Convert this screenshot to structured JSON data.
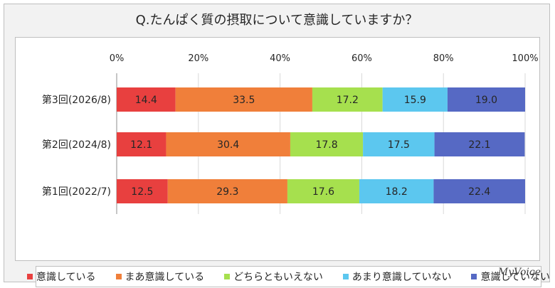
{
  "title": "Q.たんぱく質の摂取について意識していますか？",
  "brand": "MyVoice",
  "colors": [
    "#e8403f",
    "#f07f3a",
    "#a6e04e",
    "#5cc7ef",
    "#5669c4"
  ],
  "chart_data": {
    "type": "bar",
    "orientation": "horizontal",
    "stacked": "100%",
    "title": "Q.たんぱく質の摂取について意識していますか？",
    "xlim": [
      0,
      100
    ],
    "x_ticks": [
      "0%",
      "20%",
      "40%",
      "60%",
      "80%",
      "100%"
    ],
    "categories": [
      "第3回(2026/8)",
      "第2回(2024/8)",
      "第1回(2022/7)"
    ],
    "series": [
      {
        "name": "意識している",
        "values": [
          14.4,
          12.1,
          12.5
        ]
      },
      {
        "name": "まあ意識している",
        "values": [
          33.5,
          30.4,
          29.3
        ]
      },
      {
        "name": "どちらともいえない",
        "values": [
          17.2,
          17.8,
          17.6
        ]
      },
      {
        "name": "あまり意識していない",
        "values": [
          15.9,
          17.5,
          18.2
        ]
      },
      {
        "name": "意識していない",
        "values": [
          19.0,
          22.1,
          22.4
        ]
      }
    ],
    "grid": true,
    "legend_position": "bottom"
  }
}
